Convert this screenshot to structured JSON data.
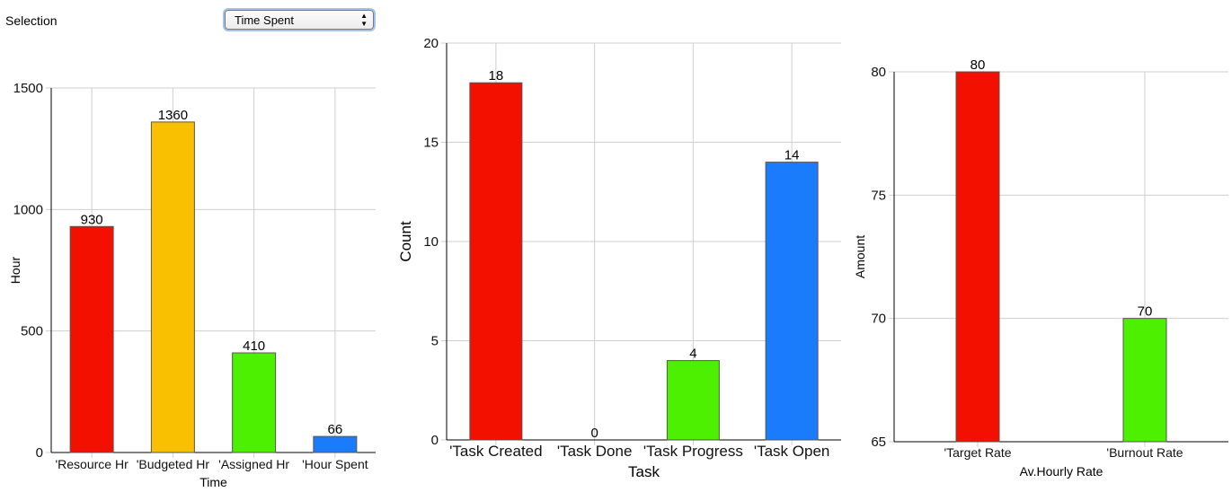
{
  "selection": {
    "label": "Selection",
    "value": "Time Spent"
  },
  "chart_data": [
    {
      "type": "bar",
      "categories": [
        "'Resource Hr",
        "'Budgeted Hr",
        "'Assigned Hr",
        "'Hour Spent"
      ],
      "values": [
        930,
        1360,
        410,
        66
      ],
      "colors": [
        "#f41000",
        "#f8c000",
        "#4cf000",
        "#1a7cfa"
      ],
      "xlabel": "Time",
      "ylabel": "Hour",
      "ylim": [
        0,
        1500
      ],
      "yticks": [
        "0",
        "500",
        "1000",
        "1500"
      ],
      "grid": true
    },
    {
      "type": "bar",
      "categories": [
        "'Task Created",
        "'Task Done",
        "'Task Progress",
        "'Task Open"
      ],
      "values": [
        18,
        0,
        4,
        14
      ],
      "colors": [
        "#f41000",
        "#f8c000",
        "#4cf000",
        "#1a7cfa"
      ],
      "xlabel": "Task",
      "ylabel": "Count",
      "ylim": [
        0,
        20
      ],
      "yticks": [
        "0",
        "5",
        "10",
        "15",
        "20"
      ],
      "grid": true
    },
    {
      "type": "bar",
      "categories": [
        "'Target Rate",
        "'Burnout Rate"
      ],
      "values": [
        80,
        70
      ],
      "colors": [
        "#f41000",
        "#4cf000"
      ],
      "xlabel": "Av.Hourly Rate",
      "ylabel": "Amount",
      "ylim": [
        65,
        80
      ],
      "yticks": [
        "65",
        "70",
        "75",
        "80"
      ],
      "grid": true
    }
  ]
}
